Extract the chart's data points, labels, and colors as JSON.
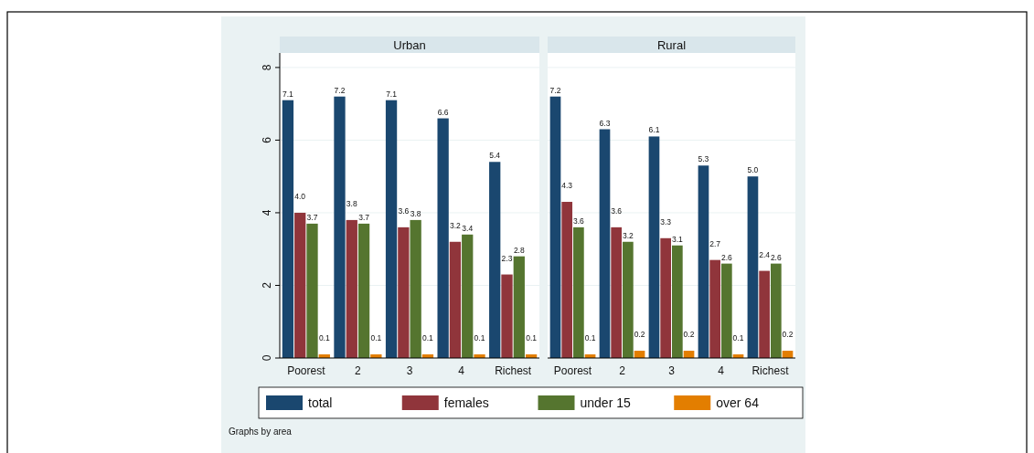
{
  "chart_data": [
    {
      "type": "bar",
      "title": "Urban",
      "categories": [
        "Poorest",
        "2",
        "3",
        "4",
        "Richest"
      ],
      "series": [
        {
          "name": "total",
          "color": "#1a476f",
          "values": [
            7.1,
            7.2,
            7.1,
            6.6,
            5.4
          ],
          "value_labels": [
            "7.1",
            "7.2",
            "7.1",
            "6.6",
            "5.4"
          ]
        },
        {
          "name": "females",
          "color": "#90353b",
          "values": [
            4.0,
            3.8,
            3.6,
            3.2,
            2.3
          ],
          "value_labels": [
            "4.0",
            "3.8",
            "3.6",
            "3.2",
            "2.3"
          ]
        },
        {
          "name": "under 15",
          "color": "#55752f",
          "values": [
            3.7,
            3.7,
            3.8,
            3.4,
            2.8
          ],
          "value_labels": [
            "3.7",
            "3.7",
            "3.8",
            "3.4",
            "2.8"
          ]
        },
        {
          "name": "over 64",
          "color": "#e37e00",
          "values": [
            0.1,
            0.1,
            0.1,
            0.1,
            0.1
          ],
          "value_labels": [
            "0.1",
            "0.1",
            "0.1",
            "0.1",
            "0.1"
          ]
        }
      ],
      "ylim": [
        0,
        8.4
      ],
      "yticks": [
        0,
        2,
        4,
        6,
        8
      ],
      "grid": "y",
      "legend": "bottom",
      "annotations": [
        "Graphs by area"
      ]
    },
    {
      "type": "bar",
      "title": "Rural",
      "categories": [
        "Poorest",
        "2",
        "3",
        "4",
        "Richest"
      ],
      "series": [
        {
          "color": "#1a476f",
          "values": [
            7.2,
            6.3,
            6.1,
            5.3,
            5.0
          ],
          "value_labels": [
            "7.2",
            "6.3",
            "6.1",
            "5.3",
            "5.0"
          ]
        },
        {
          "color": "#90353b",
          "values": [
            4.3,
            3.6,
            3.3,
            2.7,
            2.4
          ],
          "value_labels": [
            "4.3",
            "3.6",
            "3.3",
            "2.7",
            "2.4"
          ]
        },
        {
          "color": "#55752f",
          "values": [
            3.6,
            3.2,
            3.1,
            2.6,
            2.6
          ],
          "value_labels": [
            "3.6",
            "3.2",
            "3.1",
            "2.6",
            "2.6"
          ]
        },
        {
          "color": "#e37e00",
          "values": [
            0.1,
            0.2,
            0.2,
            0.1,
            0.2
          ],
          "value_labels": [
            "0.1",
            "0.2",
            "0.2",
            "0.1",
            "0.2"
          ]
        }
      ],
      "ylim": [
        0,
        8.4
      ],
      "yticks": [
        0,
        2,
        4,
        6,
        8
      ],
      "grid": "y",
      "tick_labels": "x"
    }
  ]
}
